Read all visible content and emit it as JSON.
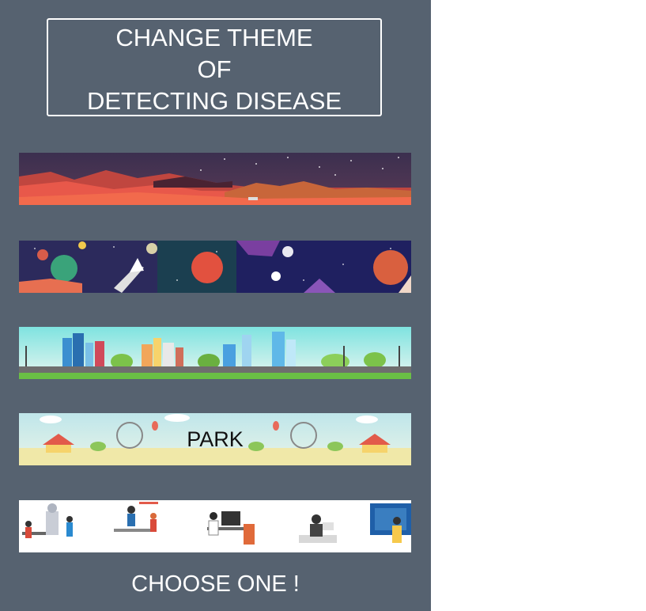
{
  "header": {
    "title_lines": [
      "CHANGE THEME",
      "OF",
      "DETECTING DISEASE"
    ]
  },
  "themes": [
    {
      "name": "mars",
      "label": ""
    },
    {
      "name": "space",
      "label": ""
    },
    {
      "name": "city",
      "label": ""
    },
    {
      "name": "park",
      "label": "PARK"
    },
    {
      "name": "office",
      "label": ""
    }
  ],
  "footer": {
    "text": "CHOOSE ONE !"
  },
  "colors": {
    "panel": "#566270",
    "page": "#ffffff",
    "text_light": "#ffffff"
  }
}
